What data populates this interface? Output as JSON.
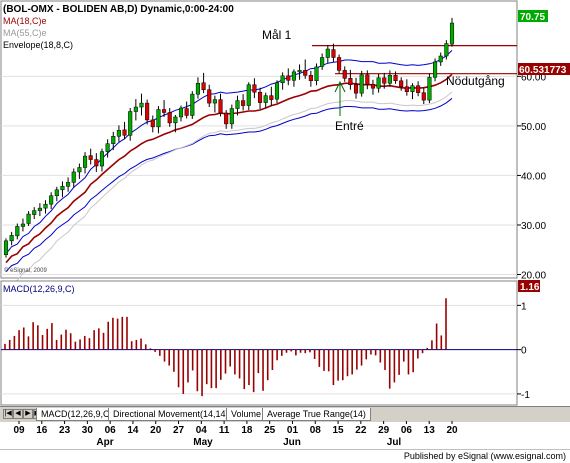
{
  "header": {
    "line1": "(BOL-OMX - BOLIDEN AB,D) Dynamic,0:00-24:00",
    "line2": "MA(18,C)e",
    "line3": "MA(55,C)e",
    "line4": "Envelope(18,8,C)"
  },
  "copyright": "© eSignal, 2009",
  "price_axis": {
    "ticks": [
      "60.00",
      "50.00",
      "40.00",
      "30.00",
      "20.00"
    ],
    "last_price_label": "70.75",
    "level_label": "60.531773"
  },
  "annotations": {
    "target": "Mål 1",
    "entry": "Entré",
    "stop": "Nödutgång"
  },
  "macd_panel": {
    "title": "MACD(12,26,9,C)",
    "ticks": [
      "1",
      "0",
      "-1"
    ],
    "last_value_label": "1.16"
  },
  "tabs": [
    {
      "label": "MACD(12,26,9,C)",
      "active": true
    },
    {
      "label": "Directional Movement(14,14)",
      "active": false
    },
    {
      "label": "Volume",
      "active": false
    },
    {
      "label": "Average True Range(14)",
      "active": false
    }
  ],
  "x_axis": {
    "days": [
      "09",
      "16",
      "23",
      "30",
      "06",
      "14",
      "20",
      "27",
      "04",
      "11",
      "18",
      "25",
      "01",
      "08",
      "15",
      "22",
      "29",
      "06",
      "13",
      "20"
    ],
    "months": [
      "Apr",
      "May",
      "Jun",
      "Jul"
    ]
  },
  "footer": "Published by eSignal (www.esignal.com)",
  "colors": {
    "up_candle": "#00aa00",
    "down_candle": "#dd0000",
    "ma18": "#990000",
    "ma55": "#c8c8c8",
    "envelope": "#0000cc",
    "level_lines": "#990000",
    "macd_bars": "#990000",
    "price_label_bg": "#00aa00",
    "level_label_bg": "#990000"
  },
  "chart_data": [
    {
      "type": "candlestick",
      "symbol": "BOL-OMX",
      "y_axis_ticks": [
        60,
        50,
        40,
        30,
        20
      ],
      "last_price": 70.75,
      "horizontal_levels": [
        66.2,
        60.53
      ],
      "candles": [
        [
          24.0,
          27.3,
          23.4,
          26.8
        ],
        [
          26.8,
          28.6,
          25.9,
          27.9
        ],
        [
          27.8,
          30.3,
          27.1,
          29.7
        ],
        [
          29.7,
          31.3,
          28.7,
          30.2
        ],
        [
          30.3,
          32.8,
          29.8,
          32.2
        ],
        [
          32.1,
          33.6,
          31.2,
          32.9
        ],
        [
          32.9,
          34.4,
          31.8,
          33.4
        ],
        [
          33.4,
          35.0,
          32.3,
          34.2
        ],
        [
          34.2,
          36.6,
          33.2,
          35.9
        ],
        [
          35.9,
          37.7,
          34.8,
          37.1
        ],
        [
          37.1,
          38.8,
          35.6,
          37.8
        ],
        [
          37.8,
          39.6,
          36.7,
          38.6
        ],
        [
          38.6,
          41.4,
          37.6,
          40.7
        ],
        [
          40.7,
          42.4,
          39.3,
          41.6
        ],
        [
          41.6,
          44.7,
          40.4,
          43.9
        ],
        [
          44.0,
          45.4,
          42.2,
          43.2
        ],
        [
          43.2,
          44.5,
          40.7,
          41.9
        ],
        [
          41.9,
          45.4,
          40.8,
          44.8
        ],
        [
          44.8,
          47.3,
          43.6,
          46.4
        ],
        [
          46.4,
          48.8,
          45.1,
          47.9
        ],
        [
          47.9,
          50.1,
          46.8,
          49.1
        ],
        [
          49.2,
          50.8,
          47.3,
          48.1
        ],
        [
          48.1,
          53.6,
          47.0,
          52.9
        ],
        [
          52.9,
          55.4,
          51.1,
          53.8
        ],
        [
          53.8,
          56.5,
          52.1,
          54.6
        ],
        [
          54.6,
          55.3,
          50.3,
          51.2
        ],
        [
          51.2,
          52.1,
          48.7,
          49.8
        ],
        [
          49.8,
          54.0,
          48.5,
          53.3
        ],
        [
          53.3,
          55.2,
          51.8,
          52.7
        ],
        [
          52.7,
          53.6,
          49.8,
          50.6
        ],
        [
          50.6,
          52.2,
          48.7,
          51.8
        ],
        [
          51.8,
          54.1,
          50.9,
          53.6
        ],
        [
          53.5,
          54.9,
          51.5,
          52.1
        ],
        [
          52.1,
          57.0,
          51.4,
          56.4
        ],
        [
          56.4,
          59.8,
          55.5,
          58.6
        ],
        [
          58.7,
          60.7,
          56.6,
          57.3
        ],
        [
          57.3,
          58.3,
          53.8,
          54.6
        ],
        [
          54.6,
          56.1,
          52.7,
          55.3
        ],
        [
          55.3,
          56.5,
          51.9,
          52.6
        ],
        [
          52.6,
          53.2,
          49.4,
          50.4
        ],
        [
          50.4,
          54.3,
          49.4,
          53.5
        ],
        [
          53.5,
          56.1,
          52.1,
          55.1
        ],
        [
          55.1,
          56.4,
          53.1,
          54.1
        ],
        [
          54.1,
          58.8,
          53.2,
          58.3
        ],
        [
          58.3,
          59.6,
          55.6,
          56.8
        ],
        [
          56.8,
          57.7,
          53.4,
          54.7
        ],
        [
          54.7,
          56.7,
          53.6,
          56.1
        ],
        [
          56.1,
          57.9,
          54.1,
          55.3
        ],
        [
          55.4,
          59.2,
          54.6,
          58.7
        ],
        [
          58.7,
          60.8,
          57.3,
          60.1
        ],
        [
          60.1,
          61.6,
          58.2,
          59.2
        ],
        [
          59.2,
          61.4,
          57.9,
          60.9
        ],
        [
          60.9,
          62.4,
          59.3,
          61.2
        ],
        [
          61.2,
          63.4,
          59.5,
          60.2
        ],
        [
          60.2,
          61.1,
          57.9,
          59.1
        ],
        [
          59.1,
          62.6,
          58.2,
          61.9
        ],
        [
          62.0,
          64.6,
          61.3,
          63.8
        ],
        [
          63.8,
          66.3,
          62.6,
          65.5
        ],
        [
          65.4,
          66.6,
          62.9,
          63.8
        ],
        [
          63.8,
          64.4,
          60.6,
          61.2
        ],
        [
          61.2,
          62.0,
          58.9,
          59.6
        ],
        [
          59.6,
          61.3,
          57.3,
          58.3
        ],
        [
          58.3,
          59.7,
          55.5,
          56.6
        ],
        [
          56.6,
          61.1,
          55.9,
          60.3
        ],
        [
          60.3,
          61.2,
          57.4,
          58.4
        ],
        [
          58.4,
          59.3,
          56.3,
          57.6
        ],
        [
          57.6,
          60.5,
          56.7,
          59.7
        ],
        [
          59.7,
          60.7,
          57.5,
          58.6
        ],
        [
          58.6,
          61.2,
          57.9,
          60.2
        ],
        [
          60.2,
          61.0,
          58.5,
          59.1
        ],
        [
          59.1,
          59.8,
          57.1,
          57.9
        ],
        [
          57.9,
          59.4,
          56.1,
          56.9
        ],
        [
          56.9,
          58.6,
          55.4,
          58.1
        ],
        [
          58.1,
          59.0,
          56.0,
          56.7
        ],
        [
          56.7,
          57.7,
          54.4,
          55.2
        ],
        [
          55.2,
          60.6,
          54.6,
          59.8
        ],
        [
          59.8,
          63.6,
          59.0,
          62.9
        ],
        [
          62.9,
          64.8,
          62.1,
          64.1
        ],
        [
          64.1,
          67.3,
          63.4,
          66.6
        ],
        [
          66.5,
          71.8,
          66.0,
          70.75
        ]
      ],
      "ma18_values": [
        22.4,
        23.7,
        24.2,
        25.6,
        26.2,
        27.5,
        28.2,
        29.4,
        30.4,
        31.8,
        32.7,
        33.5,
        34.8,
        35.7,
        36.6,
        38.2,
        39.1,
        40.2,
        41.2,
        42.2,
        43.2,
        43.9,
        44.9,
        45.6,
        46.4,
        47.0,
        47.3,
        47.8,
        48.3,
        48.7,
        49.2,
        49.5,
        49.9,
        50.3,
        51.0,
        51.7,
        52.2,
        52.3,
        52.6,
        52.4,
        52.5,
        52.6,
        52.8,
        53.0,
        53.0,
        53.2,
        53.6,
        54.1,
        54.4,
        54.9,
        55.4,
        55.8,
        56.1,
        56.5,
        57.0,
        57.1,
        57.6,
        58.0,
        58.2,
        58.3,
        58.6,
        58.6,
        58.5,
        58.3,
        58.3,
        58.3,
        58.0,
        58.0,
        58.1,
        57.9,
        57.7,
        57.6,
        57.7,
        57.6,
        57.7,
        57.9,
        58.2,
        58.7,
        59.4,
        60.4
      ]
    },
    {
      "type": "bar",
      "title": "MACD(12,26,9,C)",
      "y_axis_ticks": [
        1,
        0,
        -1
      ],
      "last_value": 1.16,
      "values": [
        0.13,
        0.22,
        0.31,
        0.44,
        0.5,
        0.3,
        0.62,
        0.55,
        0.33,
        0.47,
        0.6,
        0.22,
        0.34,
        0.45,
        0.37,
        0.18,
        0.23,
        0.31,
        0.26,
        0.44,
        0.48,
        0.38,
        0.63,
        0.72,
        0.7,
        0.74,
        0.74,
        0.19,
        0.22,
        0.25,
        0.12,
        0.03,
        -0.05,
        -0.14,
        -0.27,
        -0.36,
        -0.5,
        -0.85,
        -1.0,
        -0.74,
        -0.47,
        -0.94,
        -1.05,
        -0.78,
        -0.87,
        -0.87,
        -0.68,
        -0.54,
        -0.38,
        -0.56,
        -0.65,
        -0.89,
        -0.8,
        -0.96,
        -0.53,
        -0.93,
        -0.69,
        -0.46,
        -0.24,
        -0.14,
        -0.07,
        -0.04,
        -0.13,
        -0.07,
        -0.08,
        -0.06,
        -0.21,
        -0.39,
        -0.48,
        -0.49,
        -0.8,
        -0.7,
        -0.69,
        -0.6,
        -0.56,
        -0.45,
        -0.36,
        -0.22,
        -0.11,
        -0.13,
        -0.29,
        -0.46,
        -0.88,
        -0.74,
        -0.57,
        -0.27,
        -0.56,
        -0.51,
        -0.2,
        -0.08,
        0.04,
        0.21,
        0.59,
        0.32,
        1.16
      ]
    }
  ]
}
